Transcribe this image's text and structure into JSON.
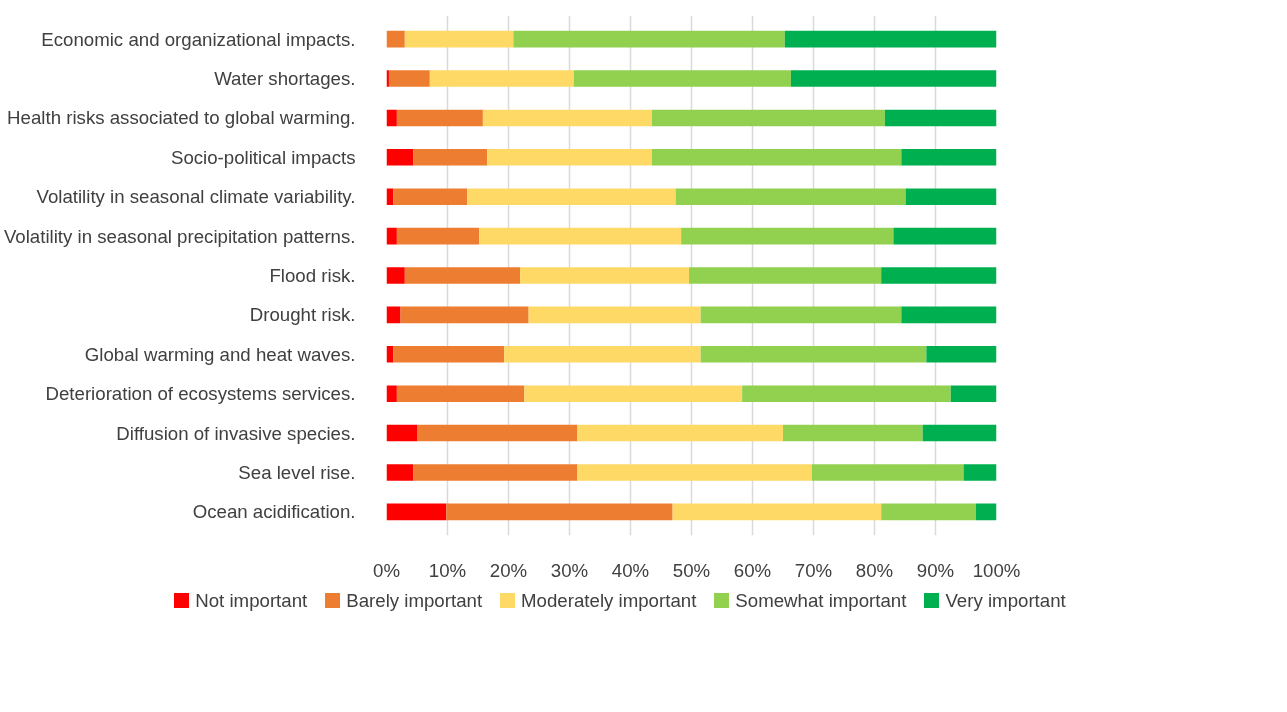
{
  "chart_data": {
    "type": "bar",
    "orientation": "horizontal",
    "stacked": true,
    "categories": [
      "Economic and organizational impacts.",
      "Water shortages.",
      "Health risks associated to global warming.",
      "Socio-political impacts",
      "Volatility in seasonal climate variability.",
      "Volatility in seasonal precipitation patterns.",
      "Flood risk.",
      "Drought risk.",
      "Global warming and heat waves.",
      "Deterioration of ecosystems services.",
      "Diffusion of invasive species.",
      "Sea level rise.",
      "Ocean acidification."
    ],
    "series": [
      {
        "name": "Not important",
        "color": "#ff0000",
        "values": [
          0,
          0.4,
          1.7,
          4.4,
          1.1,
          1.7,
          3.0,
          2.3,
          1.1,
          1.7,
          5.0,
          4.4,
          9.8
        ]
      },
      {
        "name": "Barely important",
        "color": "#ed7d31",
        "values": [
          3.0,
          6.7,
          14.1,
          12.1,
          12.1,
          13.5,
          18.9,
          21.0,
          18.2,
          20.9,
          26.3,
          26.9,
          37.1
        ]
      },
      {
        "name": "Moderately important",
        "color": "#ffd966",
        "values": [
          17.8,
          23.6,
          27.7,
          27.0,
          34.2,
          33.1,
          27.7,
          28.2,
          32.2,
          35.7,
          33.7,
          38.4,
          34.2
        ]
      },
      {
        "name": "Somewhat important",
        "color": "#92d050",
        "values": [
          44.5,
          35.6,
          38.2,
          40.9,
          37.7,
          34.8,
          31.5,
          32.9,
          37.0,
          34.2,
          22.9,
          24.9,
          15.5
        ]
      },
      {
        "name": "Very important",
        "color": "#00b050",
        "values": [
          34.7,
          33.7,
          18.3,
          15.6,
          14.9,
          16.9,
          18.9,
          15.6,
          11.5,
          7.5,
          12.1,
          5.4,
          3.4
        ]
      }
    ],
    "xlim": [
      0,
      100
    ],
    "xticks": [
      {
        "value": 0,
        "label": "0%"
      },
      {
        "value": 10,
        "label": "10%"
      },
      {
        "value": 20,
        "label": "20%"
      },
      {
        "value": 30,
        "label": "30%"
      },
      {
        "value": 40,
        "label": "40%"
      },
      {
        "value": 50,
        "label": "50%"
      },
      {
        "value": 60,
        "label": "60%"
      },
      {
        "value": 70,
        "label": "70%"
      },
      {
        "value": 80,
        "label": "80%"
      },
      {
        "value": 90,
        "label": "90%"
      },
      {
        "value": 100,
        "label": "100%"
      }
    ],
    "grid": "x",
    "legend": "bottom"
  }
}
